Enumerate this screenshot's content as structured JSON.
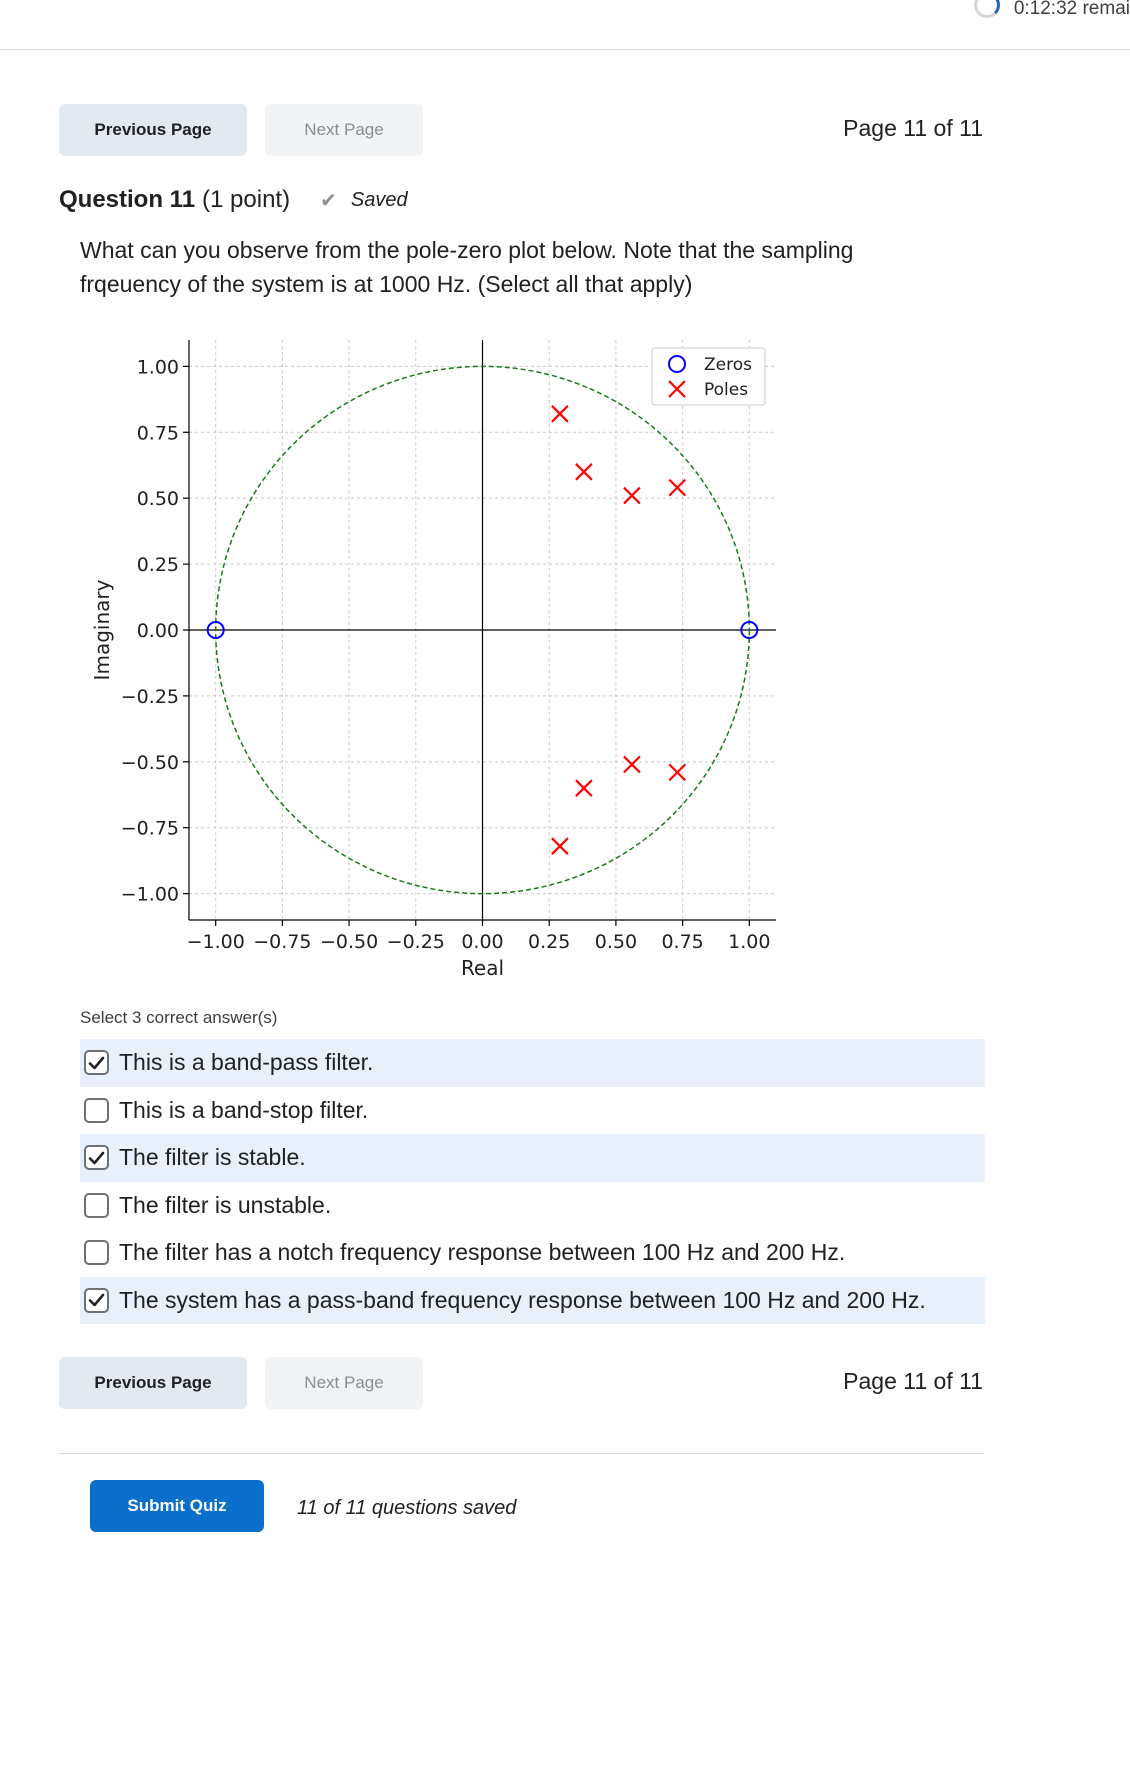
{
  "timer": {
    "text": "0:12:32 remai"
  },
  "nav": {
    "previous_label": "Previous Page",
    "next_label": "Next Page",
    "page_indicator": "Page 11 of 11"
  },
  "question": {
    "title": "Question 11",
    "points": "(1 point)",
    "saved_label": "Saved",
    "text": "What can you observe from the pole-zero plot below. Note that the sampling frqeuency of the system is at 1000 Hz. (Select all that apply)"
  },
  "chart_data": {
    "type": "scatter",
    "title": "",
    "xlabel": "Real",
    "ylabel": "Imaginary",
    "xlim": [
      -1.1,
      1.1
    ],
    "ylim": [
      -1.1,
      1.1
    ],
    "xticks": [
      "−1.00",
      "−0.75",
      "−0.50",
      "−0.25",
      "0.00",
      "0.25",
      "0.50",
      "0.75",
      "1.00"
    ],
    "yticks": [
      "1.00",
      "0.75",
      "0.50",
      "0.25",
      "0.00",
      "−0.25",
      "−0.50",
      "−0.75",
      "−1.00"
    ],
    "xtick_values": [
      -1,
      -0.75,
      -0.5,
      -0.25,
      0,
      0.25,
      0.5,
      0.75,
      1
    ],
    "ytick_values": [
      1,
      0.75,
      0.5,
      0.25,
      0,
      -0.25,
      -0.5,
      -0.75,
      -1
    ],
    "grid": true,
    "unit_circle": true,
    "legend_position": "top-right",
    "series": [
      {
        "name": "Zeros",
        "marker": "circle",
        "color": "#0000ff",
        "points": [
          [
            -1.0,
            0.0
          ],
          [
            1.0,
            0.0
          ]
        ]
      },
      {
        "name": "Poles",
        "marker": "x",
        "color": "#ff0000",
        "points": [
          [
            0.29,
            0.82
          ],
          [
            0.38,
            0.6
          ],
          [
            0.56,
            0.51
          ],
          [
            0.73,
            0.54
          ],
          [
            0.29,
            -0.82
          ],
          [
            0.38,
            -0.6
          ],
          [
            0.56,
            -0.51
          ],
          [
            0.73,
            -0.54
          ]
        ]
      }
    ]
  },
  "answers": {
    "instruction": "Select 3 correct answer(s)",
    "options": [
      {
        "text": "This is a band-pass filter.",
        "checked": true
      },
      {
        "text": "This is a band-stop filter.",
        "checked": false
      },
      {
        "text": "The filter is stable.",
        "checked": true
      },
      {
        "text": "The filter is unstable.",
        "checked": false
      },
      {
        "text": "The filter has a notch frequency response between 100 Hz and 200 Hz.",
        "checked": false
      },
      {
        "text": "The system has a pass-band frequency response between 100 Hz and 200 Hz.",
        "checked": true
      }
    ]
  },
  "footer": {
    "submit_label": "Submit Quiz",
    "saved_count": "11 of 11 questions saved"
  }
}
